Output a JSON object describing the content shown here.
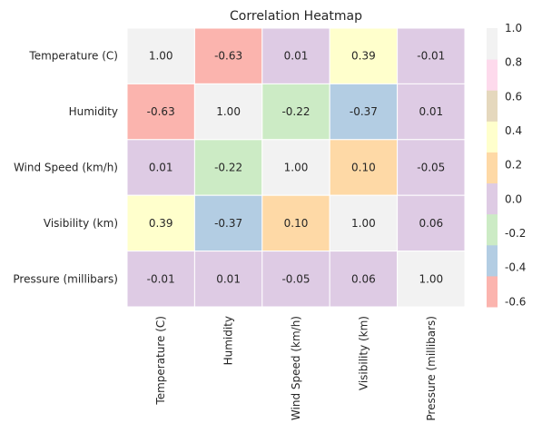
{
  "chart_data": {
    "type": "heatmap",
    "title": "Correlation Heatmap",
    "xlabel": "",
    "ylabel": "",
    "x_categories": [
      "Temperature (C)",
      "Humidity",
      "Wind Speed (km/h)",
      "Visibility (km)",
      "Pressure (millibars)"
    ],
    "y_categories": [
      "Temperature (C)",
      "Humidity",
      "Wind Speed (km/h)",
      "Visibility (km)",
      "Pressure (millibars)"
    ],
    "values": [
      [
        1.0,
        -0.63,
        0.01,
        0.39,
        -0.01
      ],
      [
        -0.63,
        1.0,
        -0.22,
        -0.37,
        0.01
      ],
      [
        0.01,
        -0.22,
        1.0,
        0.1,
        -0.05
      ],
      [
        0.39,
        -0.37,
        0.1,
        1.0,
        0.06
      ],
      [
        -0.01,
        0.01,
        -0.05,
        0.06,
        1.0
      ]
    ],
    "annotation_format": "0.00",
    "colormap": "Pastel1",
    "colors": [
      "#fbb4ae",
      "#b3cde3",
      "#ccebc5",
      "#decbe4",
      "#fed9a6",
      "#ffffcc",
      "#e5d8bd",
      "#fddaec",
      "#f2f2f2"
    ],
    "vmin": -0.63,
    "vmax": 1.0,
    "colorbar_ticks": [
      "-0.6",
      "-0.4",
      "-0.2",
      "0.0",
      "0.2",
      "0.4",
      "0.6",
      "0.8",
      "1.0"
    ],
    "colorbar_tick_values": [
      -0.6,
      -0.4,
      -0.2,
      0.0,
      0.2,
      0.4,
      0.6,
      0.8,
      1.0
    ],
    "grid": false,
    "cell_separator_color": "#ffffff"
  }
}
